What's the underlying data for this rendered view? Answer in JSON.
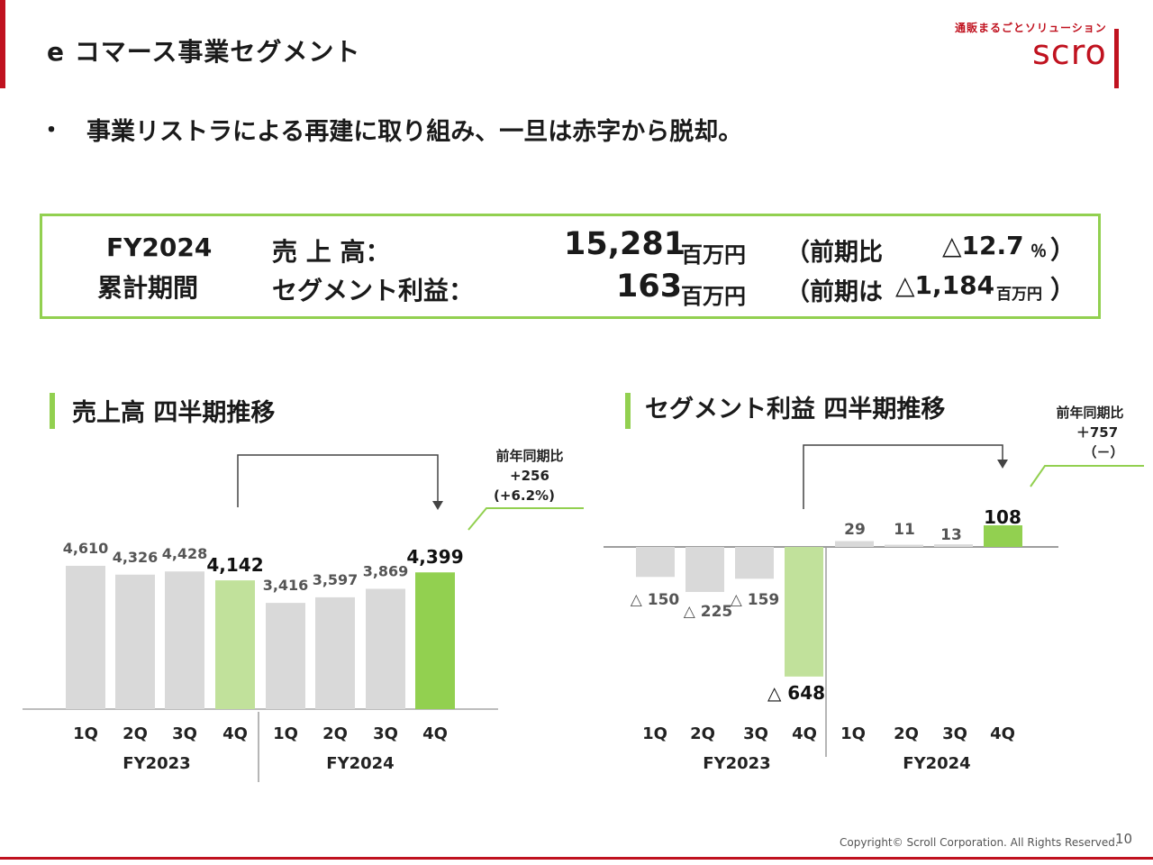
{
  "header": {
    "title": "e コマース事業セグメント",
    "logo_tagline": "通販まるごとソリューション",
    "logo_word": "scro"
  },
  "bullet": {
    "mark": "・",
    "text": "事業リストラによる再建に取り組み、一旦は赤字から脱却。"
  },
  "summary": {
    "period_line1": "FY2024",
    "period_line2": "累計期間",
    "sales_label": "売 上 高：",
    "sales_value": "15,281",
    "sales_unit": "百万円",
    "sales_compare_open": "（前期比",
    "sales_compare_value": "△12.7",
    "sales_compare_pct": "％",
    "sales_compare_close": "）",
    "profit_label": "セグメント利益：",
    "profit_value": "163",
    "profit_unit": "百万円",
    "profit_compare_open": "（前期は",
    "profit_compare_value": "△1,184",
    "profit_compare_unit": "百万円",
    "profit_compare_close": "）"
  },
  "sales_section_title": "売上高 四半期推移",
  "profit_section_title": "セグメント利益 四半期推移",
  "colors": {
    "accent_red": "#c0121f",
    "bar_gray": "#d9d9d9",
    "bar_light_green": "#c1e19b",
    "bar_green": "#92d050",
    "frame_green": "#92d050"
  },
  "chart_data": [
    {
      "type": "bar",
      "categories": [
        "1Q",
        "2Q",
        "3Q",
        "4Q",
        "1Q",
        "2Q",
        "3Q",
        "4Q"
      ],
      "groups": [
        "FY2023",
        "FY2024"
      ],
      "values": [
        4610,
        4326,
        4428,
        4142,
        3416,
        3597,
        3869,
        4399
      ],
      "labels": [
        "4,610",
        "4,326",
        "4,428",
        "4,142",
        "3,416",
        "3,597",
        "3,869",
        "4,399"
      ],
      "highlight": [
        "gray",
        "gray",
        "gray",
        "light-green",
        "gray",
        "gray",
        "gray",
        "green"
      ],
      "ylim": [
        0,
        5000
      ],
      "annotation": {
        "line1": "前年同期比",
        "line2": "+256",
        "line3": "(+6.2%)"
      }
    },
    {
      "type": "bar",
      "categories": [
        "1Q",
        "2Q",
        "3Q",
        "4Q",
        "1Q",
        "2Q",
        "3Q",
        "4Q"
      ],
      "groups": [
        "FY2023",
        "FY2024"
      ],
      "values": [
        -150,
        -225,
        -159,
        -648,
        29,
        11,
        13,
        108
      ],
      "labels": [
        "△ 150",
        "△ 225",
        "△ 159",
        "△ 648",
        "29",
        "11",
        "13",
        "108"
      ],
      "highlight": [
        "gray",
        "gray",
        "gray",
        "light-green",
        "gray",
        "gray",
        "gray",
        "green"
      ],
      "annotation": {
        "line1": "前年同期比",
        "line2": "＋757",
        "line3": "（－）"
      }
    }
  ],
  "footer": {
    "copyright": "Copyright© Scroll Corporation. All Rights Reserved.",
    "page_number": "10"
  }
}
